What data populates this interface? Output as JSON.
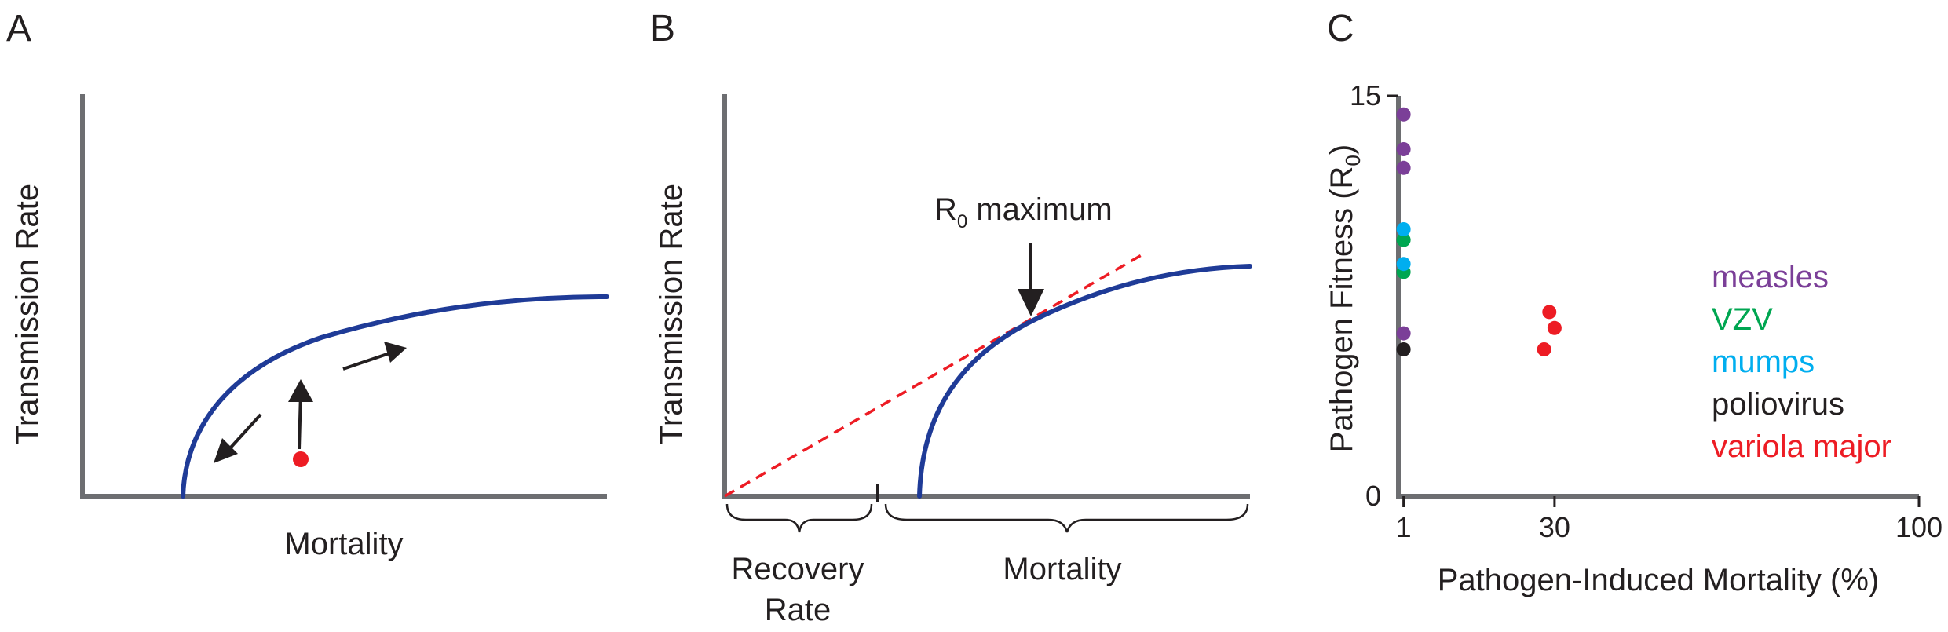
{
  "panels": {
    "a": {
      "letter": "A",
      "xlabel": "Mortality",
      "ylabel": "Transmission Rate"
    },
    "b": {
      "letter": "B",
      "xlabel": "Mortality",
      "ylabel": "Transmission Rate",
      "annotation_r": "R",
      "annotation_sub": "0",
      "annotation_rest": " maximum",
      "recovery_line1": "Recovery",
      "recovery_line2": "Rate"
    }
  },
  "colors": {
    "curve": "#1f3b97",
    "axis": "#6d6e71",
    "red_point": "#ed1c24",
    "dashed_line": "#ed1c24",
    "arrows": "#231f20"
  },
  "chart_data": {
    "type": "scatter",
    "panel_letter": "C",
    "xlabel": "Pathogen-Induced Mortality (%)",
    "ylabel_main": "Pathogen Fitness (R",
    "ylabel_sub": "0",
    "ylabel_close": ")",
    "xlim": [
      0,
      100
    ],
    "ylim": [
      0,
      15
    ],
    "x_ticks": [
      "1",
      "30",
      "100"
    ],
    "x_tick_values": [
      1,
      30,
      100
    ],
    "y_ticks": [
      "0",
      "15"
    ],
    "y_tick_values": [
      0,
      15
    ],
    "legend_placement": "right",
    "series": [
      {
        "name": "measles",
        "color": "#7b3f98",
        "points": [
          [
            1,
            14.3
          ],
          [
            1,
            13.0
          ],
          [
            1,
            12.3
          ],
          [
            1,
            6.1
          ]
        ]
      },
      {
        "name": "VZV",
        "color": "#00a651",
        "points": [
          [
            1,
            9.6
          ],
          [
            1,
            8.4
          ]
        ]
      },
      {
        "name": "mumps",
        "color": "#00aeef",
        "points": [
          [
            1,
            10.0
          ],
          [
            1,
            8.7
          ]
        ]
      },
      {
        "name": "poliovirus",
        "color": "#231f20",
        "points": [
          [
            1,
            5.5
          ]
        ]
      },
      {
        "name": "variola major",
        "color": "#ed1c24",
        "points": [
          [
            29,
            6.9
          ],
          [
            30,
            6.3
          ],
          [
            28,
            5.5
          ]
        ]
      }
    ]
  }
}
